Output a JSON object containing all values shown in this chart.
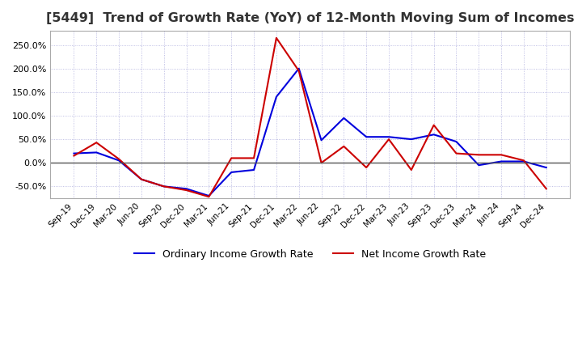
{
  "title": "[5449]  Trend of Growth Rate (YoY) of 12-Month Moving Sum of Incomes",
  "title_fontsize": 11.5,
  "background_color": "#ffffff",
  "grid_color": "#3333aa",
  "grid_alpha": 0.4,
  "x_labels": [
    "Sep-19",
    "Dec-19",
    "Mar-20",
    "Jun-20",
    "Sep-20",
    "Dec-20",
    "Mar-21",
    "Jun-21",
    "Sep-21",
    "Dec-21",
    "Mar-22",
    "Jun-22",
    "Sep-22",
    "Dec-22",
    "Mar-23",
    "Jun-23",
    "Sep-23",
    "Dec-23",
    "Mar-24",
    "Jun-24",
    "Sep-24",
    "Dec-24"
  ],
  "ordinary_income": [
    20,
    22,
    5,
    -35,
    -50,
    -55,
    -70,
    -20,
    -15,
    140,
    200,
    48,
    95,
    55,
    55,
    50,
    60,
    45,
    -5,
    3,
    3,
    -10
  ],
  "net_income": [
    15,
    43,
    8,
    -35,
    -50,
    -58,
    -72,
    10,
    10,
    265,
    195,
    0,
    35,
    -10,
    50,
    -15,
    80,
    20,
    17,
    17,
    5,
    -55
  ],
  "ordinary_color": "#0000dd",
  "net_color": "#cc0000",
  "line_width": 1.5,
  "ylim": [
    -75,
    280
  ],
  "ytick_vals": [
    -50,
    0,
    50,
    100,
    150,
    200,
    250
  ],
  "legend_labels": [
    "Ordinary Income Growth Rate",
    "Net Income Growth Rate"
  ],
  "legend_loc": "lower center",
  "legend_ncol": 2,
  "zero_line_color": "#555555"
}
